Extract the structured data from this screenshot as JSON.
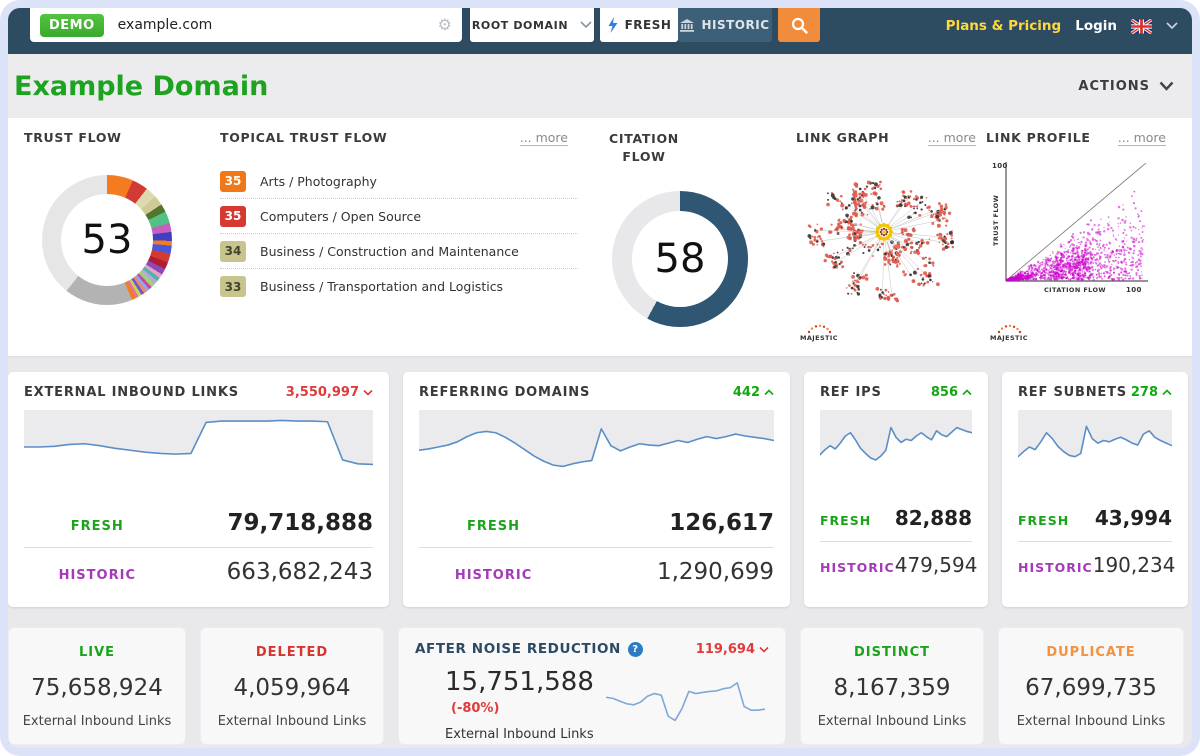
{
  "header": {
    "demo_badge": "DEMO",
    "domain_input": "example.com",
    "root_domain": "ROOT DOMAIN",
    "fresh_tab": "FRESH",
    "historic_tab": "HISTORIC",
    "plans_pricing": "Plans & Pricing",
    "login": "Login"
  },
  "page": {
    "title": "Example Domain",
    "actions": "ACTIONS"
  },
  "flow_metrics": {
    "trust_flow": {
      "label": "TRUST FLOW",
      "value": "53"
    },
    "citation_flow": {
      "label_line1": "CITATION",
      "label_line2": "FLOW",
      "value": "58"
    },
    "topical_trust_flow": {
      "label": "TOPICAL TRUST FLOW",
      "more": "... more",
      "items": [
        {
          "score": "35",
          "color": "#f07818",
          "text_color": "#ffffff",
          "label": "Arts / Photography"
        },
        {
          "score": "35",
          "color": "#d63832",
          "text_color": "#ffffff",
          "label": "Computers / Open Source"
        },
        {
          "score": "34",
          "color": "#c8c48e",
          "text_color": "#44442e",
          "label": "Business / Construction and Maintenance"
        },
        {
          "score": "33",
          "color": "#c8c48e",
          "text_color": "#44442e",
          "label": "Business / Transportation and Logistics"
        }
      ]
    },
    "link_graph": {
      "label": "LINK GRAPH",
      "more": "... more",
      "brand": "MAJESTIC"
    },
    "link_profile": {
      "label": "LINK PROFILE",
      "more": "... more",
      "brand": "MAJESTIC",
      "y_axis": "TRUST FLOW",
      "x_axis": "CITATION FLOW",
      "y_max": "100",
      "x_max": "100"
    }
  },
  "metric_cards": [
    {
      "title": "EXTERNAL INBOUND LINKS",
      "delta": "3,550,997",
      "delta_dir": "down",
      "fresh_label": "FRESH",
      "fresh": "79,718,888",
      "historic_label": "HISTORIC",
      "historic": "663,682,243"
    },
    {
      "title": "REFERRING DOMAINS",
      "delta": "442",
      "delta_dir": "up",
      "fresh_label": "FRESH",
      "fresh": "126,617",
      "historic_label": "HISTORIC",
      "historic": "1,290,699"
    },
    {
      "title": "REF IPS",
      "delta": "856",
      "delta_dir": "up",
      "fresh_label": "FRESH",
      "fresh": "82,888",
      "historic_label": "HISTORIC",
      "historic": "479,594"
    },
    {
      "title": "REF SUBNETS",
      "delta": "278",
      "delta_dir": "up",
      "fresh_label": "FRESH",
      "fresh": "43,994",
      "historic_label": "HISTORIC",
      "historic": "190,234"
    }
  ],
  "summary_cards": {
    "live": {
      "title": "LIVE",
      "value": "75,658,924",
      "caption": "External Inbound Links"
    },
    "deleted": {
      "title": "DELETED",
      "value": "4,059,964",
      "caption": "External Inbound Links"
    },
    "noise_reduction": {
      "title": "AFTER NOISE REDUCTION",
      "help": "?",
      "delta": "119,694",
      "value": "15,751,588",
      "pct": "(-80%)",
      "caption": "External Inbound Links"
    },
    "distinct": {
      "title": "DISTINCT",
      "value": "8,167,359",
      "caption": "External Inbound Links"
    },
    "duplicate": {
      "title": "DUPLICATE",
      "value": "67,699,735",
      "caption": "External Inbound Links"
    }
  },
  "chart_data": {
    "sparklines": {
      "external_inbound_links": [
        0.5,
        0.5,
        0.51,
        0.54,
        0.55,
        0.52,
        0.48,
        0.45,
        0.42,
        0.4,
        0.39,
        0.4,
        0.88,
        0.9,
        0.9,
        0.9,
        0.9,
        0.91,
        0.9,
        0.9,
        0.89,
        0.3,
        0.24,
        0.23
      ],
      "referring_domains": [
        0.45,
        0.47,
        0.5,
        0.53,
        0.58,
        0.66,
        0.72,
        0.74,
        0.72,
        0.65,
        0.56,
        0.46,
        0.36,
        0.28,
        0.22,
        0.2,
        0.24,
        0.27,
        0.29,
        0.78,
        0.52,
        0.44,
        0.5,
        0.55,
        0.53,
        0.52,
        0.56,
        0.6,
        0.57,
        0.62,
        0.66,
        0.63,
        0.66,
        0.7,
        0.67,
        0.65,
        0.63,
        0.6
      ],
      "ref_ips": [
        0.38,
        0.46,
        0.52,
        0.47,
        0.56,
        0.67,
        0.72,
        0.61,
        0.48,
        0.4,
        0.33,
        0.3,
        0.36,
        0.45,
        0.8,
        0.65,
        0.57,
        0.62,
        0.6,
        0.67,
        0.72,
        0.66,
        0.61,
        0.75,
        0.69,
        0.66,
        0.73,
        0.8,
        0.77,
        0.74,
        0.72
      ],
      "ref_subnets": [
        0.35,
        0.43,
        0.5,
        0.46,
        0.58,
        0.72,
        0.63,
        0.51,
        0.43,
        0.37,
        0.35,
        0.4,
        0.82,
        0.63,
        0.56,
        0.6,
        0.58,
        0.62,
        0.65,
        0.61,
        0.56,
        0.53,
        0.7,
        0.75,
        0.65,
        0.6,
        0.56,
        0.52
      ],
      "after_noise_reduction": [
        0.55,
        0.53,
        0.48,
        0.43,
        0.41,
        0.46,
        0.57,
        0.62,
        0.59,
        0.2,
        0.12,
        0.34,
        0.66,
        0.62,
        0.64,
        0.66,
        0.67,
        0.71,
        0.73,
        0.82,
        0.38,
        0.31,
        0.31,
        0.33
      ]
    },
    "trust_flow_donut": {
      "type": "donut",
      "value": 53,
      "segments": [
        [
          "#f47b20",
          6.5
        ],
        [
          "#d23b35",
          4
        ],
        [
          "#ded9ae",
          2.8
        ],
        [
          "#cfcb96",
          2.5
        ],
        [
          "#55742c",
          2
        ],
        [
          "#51c184",
          3
        ],
        [
          "#c75fbe",
          2.2
        ],
        [
          "#3f3fc1",
          2.2
        ],
        [
          "#f47b20",
          1.2
        ],
        [
          "#4958d8",
          2
        ],
        [
          "#d23b35",
          2.2
        ],
        [
          "#b01d30",
          1.8
        ],
        [
          "#8a4bb8",
          1.5
        ],
        [
          "#e8a0c8",
          1
        ],
        [
          "#4fb3a5",
          1
        ],
        [
          "#b9a6e0",
          1
        ],
        [
          "#9fd468",
          1
        ],
        [
          "#cc44aa",
          0.8
        ],
        [
          "#88aaee",
          0.8
        ],
        [
          "#ee8866",
          0.8
        ],
        [
          "#7755cc",
          0.8
        ],
        [
          "#c6d65a",
          0.8
        ],
        [
          "#dd7799",
          0.8
        ],
        [
          "#f47b20",
          1
        ],
        [
          "#b3b3b3",
          17
        ],
        [
          "#e6e6e6",
          39.3
        ]
      ]
    },
    "citation_flow_donut": {
      "type": "donut",
      "value": 58,
      "color": "#2f5672",
      "track": "#e8e8ea"
    },
    "link_graph": {
      "type": "network",
      "node_color": "#e0574a",
      "center_color": "#f2c500",
      "line_color": "#c2c2c2"
    },
    "link_profile": {
      "type": "scatter",
      "point_color": "#cc00cc",
      "x_range": [
        0,
        100
      ],
      "y_range": [
        0,
        100
      ]
    }
  }
}
